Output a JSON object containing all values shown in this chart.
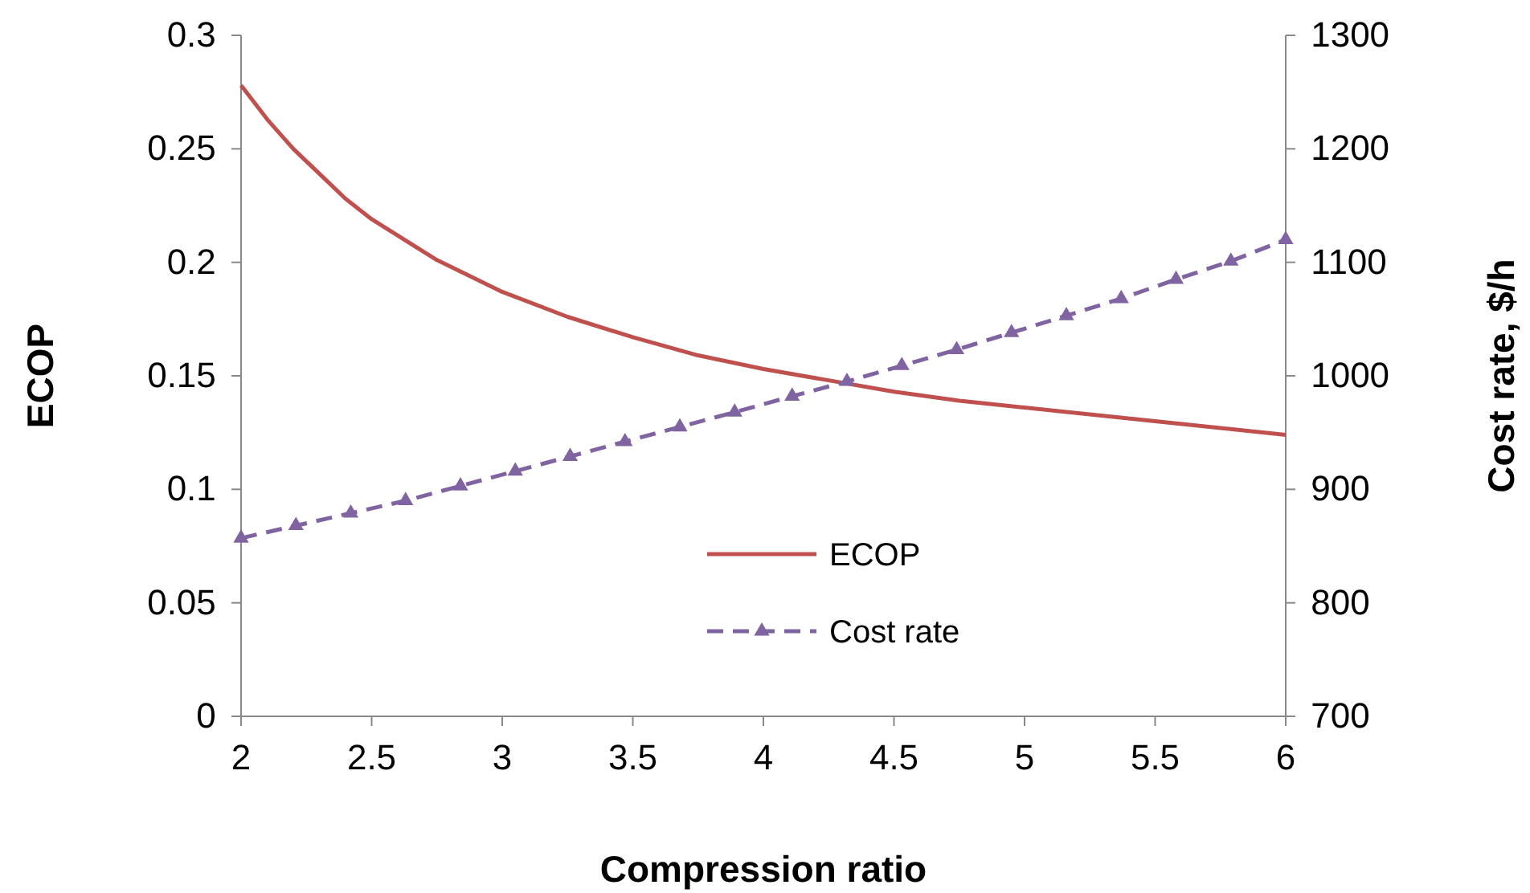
{
  "chart_data": {
    "type": "line",
    "xlabel": "Compression ratio",
    "ylabel": "ECOP",
    "y2label": "Cost rate, $/h",
    "xlim": [
      2,
      6
    ],
    "xticks": [
      2,
      2.5,
      3,
      3.5,
      4,
      4.5,
      5,
      5.5,
      6
    ],
    "ylim": [
      0,
      0.3
    ],
    "yticks": [
      0,
      0.05,
      0.1,
      0.15,
      0.2,
      0.25,
      0.3
    ],
    "y2lim": [
      700,
      1300
    ],
    "y2ticks": [
      700,
      800,
      900,
      1000,
      1100,
      1200,
      1300
    ],
    "grid": false,
    "legend": "bottom",
    "series": [
      {
        "name": "ECOP",
        "color": "#c0504d",
        "marker": "none",
        "line_style": "solid",
        "x": [
          2,
          2.1,
          2.2,
          2.3,
          2.4,
          2.5,
          2.75,
          3,
          3.25,
          3.5,
          3.75,
          4,
          4.25,
          4.5,
          4.75,
          5,
          5.5,
          6
        ],
        "values": [
          0.278,
          0.263,
          0.25,
          0.239,
          0.228,
          0.219,
          0.201,
          0.187,
          0.176,
          0.167,
          0.159,
          0.153,
          0.148,
          0.143,
          0.139,
          0.136,
          0.13,
          0.124
        ]
      },
      {
        "name": "Cost rate",
        "color": "#8064a2",
        "marker": "triangle",
        "line_style": "dashed",
        "axis": "y2",
        "x": [
          2,
          2.21,
          2.42,
          2.63,
          2.84,
          3.05,
          3.26,
          3.47,
          3.68,
          3.89,
          4.11,
          4.32,
          4.53,
          4.74,
          4.95,
          5.16,
          5.37,
          5.58,
          5.79,
          6
        ],
        "values": [
          857,
          868,
          879,
          890,
          903,
          916,
          929,
          942,
          955,
          968,
          982,
          995,
          1009,
          1023,
          1038,
          1053,
          1068,
          1085,
          1101,
          1120
        ]
      }
    ]
  }
}
